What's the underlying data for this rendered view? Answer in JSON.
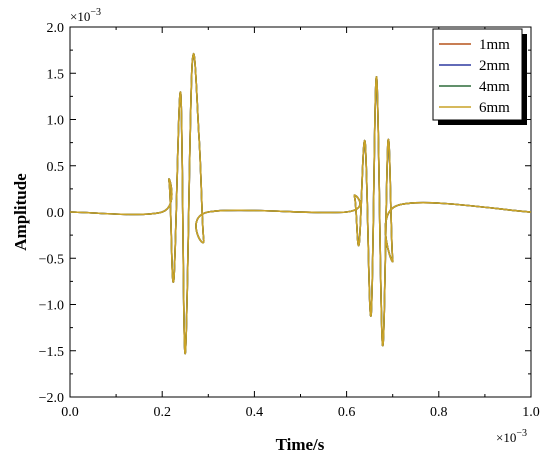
{
  "chart_data": {
    "type": "line",
    "xlabel": "Time/s",
    "ylabel": "Amplitude",
    "x_multiplier_label": "×10",
    "x_multiplier_exp": "−3",
    "y_multiplier_label": "×10",
    "y_multiplier_exp": "−3",
    "xlim": [
      0,
      1.0
    ],
    "ylim": [
      -2.0,
      2.0
    ],
    "x_ticks": [
      "0.0",
      "0.2",
      "0.4",
      "0.6",
      "0.8",
      "1.0"
    ],
    "y_ticks": [
      "2.0",
      "1.5",
      "1.0",
      "0.5",
      "0.0",
      "−0.5",
      "−1.0",
      "−1.5",
      "−2.0"
    ],
    "grid": false,
    "legend_position": "top-right",
    "x": [
      0.0,
      0.2,
      0.215,
      0.225,
      0.24,
      0.25,
      0.265,
      0.28,
      0.29,
      0.3,
      0.6,
      0.617,
      0.627,
      0.64,
      0.653,
      0.665,
      0.678,
      0.69,
      0.7,
      0.71,
      1.0
    ],
    "series": [
      {
        "name": "1mm",
        "color": "#b5541c",
        "values": [
          0.0,
          0.0,
          0.33,
          -0.74,
          1.29,
          -1.53,
          1.6,
          0.8,
          -0.3,
          0.0,
          0.0,
          0.17,
          -0.35,
          0.76,
          -1.12,
          1.46,
          -1.44,
          0.77,
          -0.52,
          0.07,
          0.0
        ]
      },
      {
        "name": "2mm",
        "color": "#2e3aa0",
        "values": [
          0.0,
          0.0,
          0.33,
          -0.74,
          1.29,
          -1.53,
          1.6,
          0.8,
          -0.3,
          0.0,
          0.0,
          0.17,
          -0.35,
          0.76,
          -1.12,
          1.46,
          -1.44,
          0.77,
          -0.52,
          0.07,
          0.0
        ]
      },
      {
        "name": "4mm",
        "color": "#2d6b3a",
        "values": [
          0.0,
          0.0,
          0.33,
          -0.74,
          1.29,
          -1.53,
          1.6,
          0.8,
          -0.3,
          0.0,
          0.0,
          0.17,
          -0.35,
          0.76,
          -1.12,
          1.46,
          -1.44,
          0.77,
          -0.52,
          0.07,
          0.0
        ]
      },
      {
        "name": "6mm",
        "color": "#c9a227",
        "values": [
          0.0,
          0.0,
          0.33,
          -0.74,
          1.29,
          -1.53,
          1.6,
          0.8,
          -0.3,
          0.0,
          0.0,
          0.17,
          -0.35,
          0.76,
          -1.12,
          1.46,
          -1.44,
          0.77,
          -0.52,
          0.07,
          0.0
        ]
      }
    ]
  }
}
